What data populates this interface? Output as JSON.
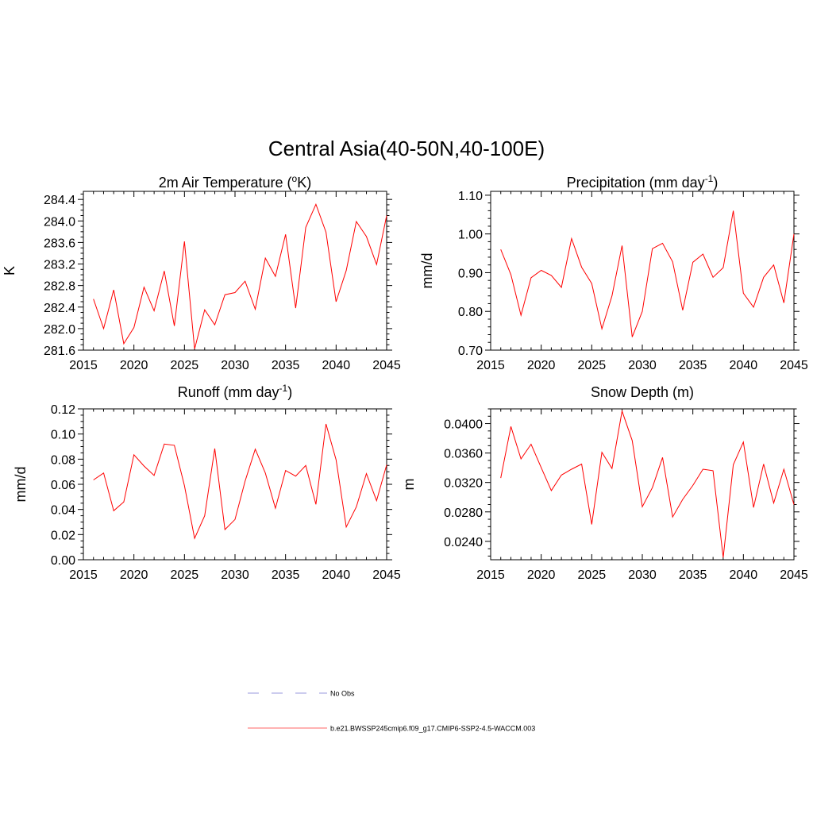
{
  "figure": {
    "title": "Central Asia(40-50N,40-100E)"
  },
  "legend": {
    "entries": [
      {
        "label": "No Obs",
        "color": "#9999dd",
        "dash": true
      },
      {
        "label": "b.e21.BWSSP245cmip6.f09_g17.CMIP6-SSP2-4.5-WACCM.003",
        "color": "#ff6666",
        "dash": false
      }
    ]
  },
  "colors": {
    "series": "#ff0000",
    "axis": "#000000"
  },
  "chart_data": [
    {
      "type": "line",
      "title": "2m Air Temperature (°K)",
      "title_parts": {
        "pre": "2m Air Temperature (",
        "sup": "o",
        "post": "K)"
      },
      "xlabel": "",
      "ylabel": "K",
      "xlim": [
        2015,
        2045
      ],
      "ylim": [
        281.6,
        284.55
      ],
      "xticks": [
        2015,
        2020,
        2025,
        2030,
        2035,
        2040,
        2045
      ],
      "xtick_labels": [
        "2015",
        "2020",
        "2025",
        "2030",
        "2035",
        "2040",
        "2045"
      ],
      "yticks": [
        281.6,
        282.0,
        282.4,
        282.8,
        283.2,
        283.6,
        284.0,
        284.4
      ],
      "ytick_labels": [
        "281.6",
        "282.0",
        "282.4",
        "282.8",
        "283.2",
        "283.6",
        "284.0",
        "284.4"
      ],
      "minor_y_step": 0.1,
      "series": [
        {
          "name": "b.e21.BWSSP245cmip6.f09_g17.CMIP6-SSP2-4.5-WACCM.003",
          "x": [
            2016,
            2017,
            2018,
            2019,
            2020,
            2021,
            2022,
            2023,
            2024,
            2025,
            2026,
            2027,
            2028,
            2029,
            2030,
            2031,
            2032,
            2033,
            2034,
            2035,
            2036,
            2037,
            2038,
            2039,
            2040,
            2041,
            2042,
            2043,
            2044,
            2045
          ],
          "y": [
            282.55,
            282.0,
            282.72,
            281.72,
            282.02,
            282.77,
            282.33,
            283.07,
            282.05,
            283.62,
            281.62,
            282.35,
            282.07,
            282.63,
            282.67,
            282.88,
            282.36,
            283.31,
            282.97,
            283.75,
            282.38,
            283.88,
            284.31,
            283.79,
            282.5,
            283.08,
            283.99,
            283.71,
            283.19,
            284.1
          ]
        }
      ]
    },
    {
      "type": "line",
      "title": "Precipitation (mm day-1)",
      "title_parts": {
        "pre": "Precipitation (mm day",
        "sup": "-1",
        "post": ")"
      },
      "xlabel": "",
      "ylabel": "mm/d",
      "xlim": [
        2015,
        2045
      ],
      "ylim": [
        0.7,
        1.11
      ],
      "xticks": [
        2015,
        2020,
        2025,
        2030,
        2035,
        2040,
        2045
      ],
      "xtick_labels": [
        "2015",
        "2020",
        "2025",
        "2030",
        "2035",
        "2040",
        "2045"
      ],
      "yticks": [
        0.7,
        0.8,
        0.9,
        1.0,
        1.1
      ],
      "ytick_labels": [
        "0.70",
        "0.80",
        "0.90",
        "1.00",
        "1.10"
      ],
      "minor_y_step": 0.02,
      "series": [
        {
          "name": "b.e21.BWSSP245cmip6.f09_g17.CMIP6-SSP2-4.5-WACCM.003",
          "x": [
            2016,
            2017,
            2018,
            2019,
            2020,
            2021,
            2022,
            2023,
            2024,
            2025,
            2026,
            2027,
            2028,
            2029,
            2030,
            2031,
            2032,
            2033,
            2034,
            2035,
            2036,
            2037,
            2038,
            2039,
            2040,
            2041,
            2042,
            2043,
            2044,
            2045
          ],
          "y": [
            0.96,
            0.895,
            0.79,
            0.887,
            0.906,
            0.893,
            0.862,
            0.988,
            0.914,
            0.872,
            0.755,
            0.84,
            0.97,
            0.734,
            0.8,
            0.962,
            0.976,
            0.928,
            0.803,
            0.927,
            0.948,
            0.888,
            0.913,
            1.06,
            0.847,
            0.811,
            0.888,
            0.92,
            0.822,
            1.0
          ]
        }
      ]
    },
    {
      "type": "line",
      "title": "Runoff (mm day-1)",
      "title_parts": {
        "pre": "Runoff (mm day",
        "sup": "-1",
        "post": ")"
      },
      "xlabel": "",
      "ylabel": "mm/d",
      "xlim": [
        2015,
        2045
      ],
      "ylim": [
        0.0,
        0.12
      ],
      "xticks": [
        2015,
        2020,
        2025,
        2030,
        2035,
        2040,
        2045
      ],
      "xtick_labels": [
        "2015",
        "2020",
        "2025",
        "2030",
        "2035",
        "2040",
        "2045"
      ],
      "yticks": [
        0.0,
        0.02,
        0.04,
        0.06,
        0.08,
        0.1,
        0.12
      ],
      "ytick_labels": [
        "0.00",
        "0.02",
        "0.04",
        "0.06",
        "0.08",
        "0.10",
        "0.12"
      ],
      "minor_y_step": 0.005,
      "series": [
        {
          "name": "b.e21.BWSSP245cmip6.f09_g17.CMIP6-SSP2-4.5-WACCM.003",
          "x": [
            2016,
            2017,
            2018,
            2019,
            2020,
            2021,
            2022,
            2023,
            2024,
            2025,
            2026,
            2027,
            2028,
            2029,
            2030,
            2031,
            2032,
            2033,
            2034,
            2035,
            2036,
            2037,
            2038,
            2039,
            2040,
            2041,
            2042,
            2043,
            2044,
            2045
          ],
          "y": [
            0.0635,
            0.069,
            0.039,
            0.046,
            0.0835,
            0.0745,
            0.067,
            0.092,
            0.091,
            0.059,
            0.017,
            0.035,
            0.0885,
            0.024,
            0.032,
            0.0625,
            0.088,
            0.069,
            0.041,
            0.071,
            0.0665,
            0.075,
            0.044,
            0.108,
            0.0795,
            0.026,
            0.042,
            0.0685,
            0.047,
            0.0755
          ]
        }
      ]
    },
    {
      "type": "line",
      "title": "Snow Depth (m)",
      "title_parts": {
        "pre": "Snow Depth (m)",
        "sup": "",
        "post": ""
      },
      "xlabel": "",
      "ylabel": "m",
      "xlim": [
        2015,
        2045
      ],
      "ylim": [
        0.0215,
        0.042
      ],
      "xticks": [
        2015,
        2020,
        2025,
        2030,
        2035,
        2040,
        2045
      ],
      "xtick_labels": [
        "2015",
        "2020",
        "2025",
        "2030",
        "2035",
        "2040",
        "2045"
      ],
      "yticks": [
        0.024,
        0.028,
        0.032,
        0.036,
        0.04
      ],
      "ytick_labels": [
        "0.0240",
        "0.0280",
        "0.0320",
        "0.0360",
        "0.0400"
      ],
      "minor_y_step": 0.001,
      "series": [
        {
          "name": "b.e21.BWSSP245cmip6.f09_g17.CMIP6-SSP2-4.5-WACCM.003",
          "x": [
            2016,
            2017,
            2018,
            2019,
            2020,
            2021,
            2022,
            2023,
            2024,
            2025,
            2026,
            2027,
            2028,
            2029,
            2030,
            2031,
            2032,
            2033,
            2034,
            2035,
            2036,
            2037,
            2038,
            2039,
            2040,
            2041,
            2042,
            2043,
            2044,
            2045
          ],
          "y": [
            0.0326,
            0.0396,
            0.0352,
            0.0372,
            0.034,
            0.0309,
            0.033,
            0.0338,
            0.0345,
            0.0263,
            0.0361,
            0.0339,
            0.0417,
            0.0377,
            0.0287,
            0.0313,
            0.0354,
            0.0273,
            0.0297,
            0.0316,
            0.0338,
            0.0336,
            0.0218,
            0.0344,
            0.0375,
            0.0286,
            0.0345,
            0.0292,
            0.0338,
            0.029
          ]
        }
      ]
    }
  ]
}
